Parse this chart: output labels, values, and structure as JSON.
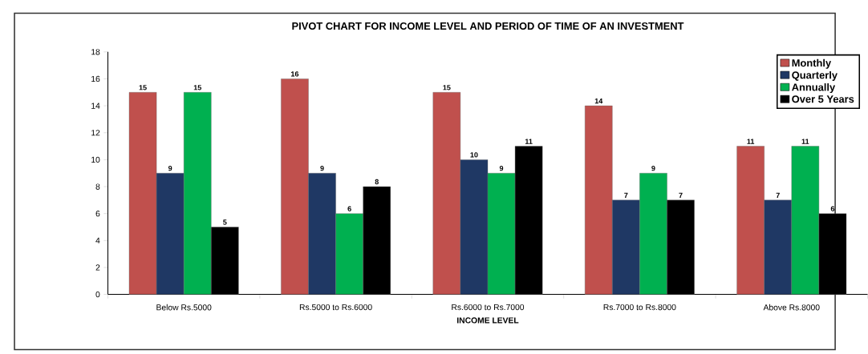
{
  "chart_data": {
    "type": "bar",
    "title": "PIVOT CHART FOR INCOME LEVEL AND PERIOD OF TIME OF AN INVESTMENT",
    "xlabel": "INCOME LEVEL",
    "categories": [
      "Below Rs.5000",
      "Rs.5000 to Rs.6000",
      "Rs.6000 to Rs.7000",
      "Rs.7000 to Rs.8000",
      "Above Rs.8000"
    ],
    "series": [
      {
        "name": "Monthly",
        "color": "#c0504d",
        "values": [
          15,
          16,
          15,
          14,
          11
        ]
      },
      {
        "name": "Quarterly",
        "color": "#1f3864",
        "values": [
          9,
          9,
          10,
          7,
          7
        ]
      },
      {
        "name": "Annually",
        "color": "#00b050",
        "values": [
          15,
          6,
          9,
          9,
          11
        ]
      },
      {
        "name": "Over 5 Years",
        "color": "#000000",
        "values": [
          5,
          8,
          11,
          7,
          6
        ]
      }
    ],
    "ylim": [
      0,
      18
    ],
    "yticks": [
      0,
      2,
      4,
      6,
      8,
      10,
      12,
      14,
      16,
      18
    ],
    "data_labels": true,
    "legend": "top right",
    "grid": false
  }
}
